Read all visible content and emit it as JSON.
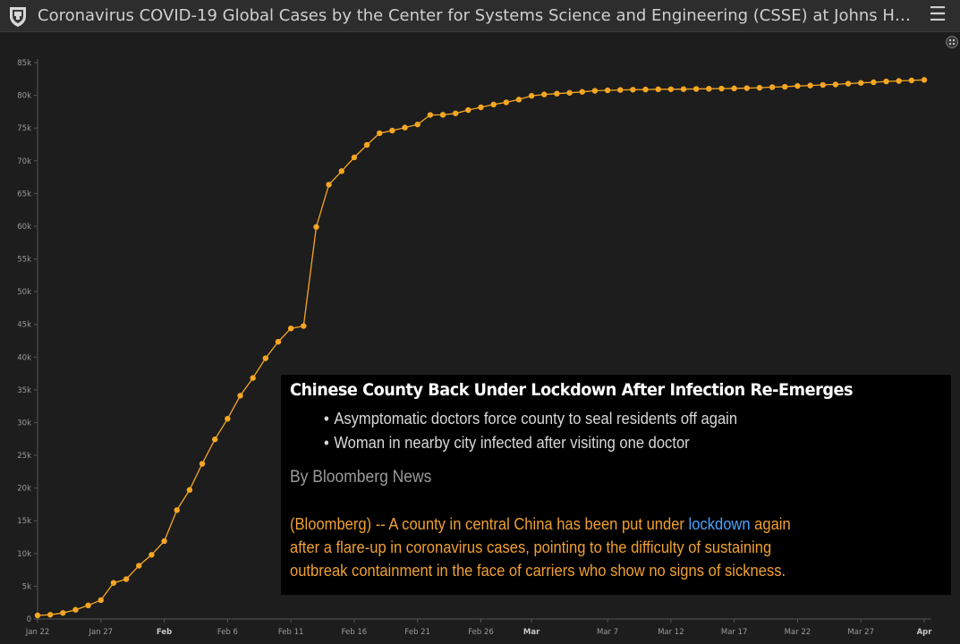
{
  "app": {
    "title": "Coronavirus COVID-19 Global Cases by the Center for Systems Science and Engineering (CSSE) at Johns H…",
    "logo_icon": "university-shield-icon",
    "menu_icon": "hamburger-menu-icon",
    "qr_icon": "qr-code-icon"
  },
  "colors": {
    "background": "#1d1d1d",
    "line": "#f5a623",
    "news_body": "#f0a030",
    "link": "#4aa3ff"
  },
  "chart_data": {
    "type": "line",
    "x_start_label": "Jan 22",
    "x": [
      "Jan 22",
      "Jan 23",
      "Jan 24",
      "Jan 25",
      "Jan 26",
      "Jan 27",
      "Jan 28",
      "Jan 29",
      "Jan 30",
      "Jan 31",
      "Feb 1",
      "Feb 2",
      "Feb 3",
      "Feb 4",
      "Feb 5",
      "Feb 6",
      "Feb 7",
      "Feb 8",
      "Feb 9",
      "Feb 10",
      "Feb 11",
      "Feb 12",
      "Feb 13",
      "Feb 14",
      "Feb 15",
      "Feb 16",
      "Feb 17",
      "Feb 18",
      "Feb 19",
      "Feb 20",
      "Feb 21",
      "Feb 22",
      "Feb 23",
      "Feb 24",
      "Feb 25",
      "Feb 26",
      "Feb 27",
      "Feb 28",
      "Feb 29",
      "Mar 1",
      "Mar 2",
      "Mar 3",
      "Mar 4",
      "Mar 5",
      "Mar 6",
      "Mar 7",
      "Mar 8",
      "Mar 9",
      "Mar 10",
      "Mar 11",
      "Mar 12",
      "Mar 13",
      "Mar 14",
      "Mar 15",
      "Mar 16",
      "Mar 17",
      "Mar 18",
      "Mar 19",
      "Mar 20",
      "Mar 21",
      "Mar 22",
      "Mar 23",
      "Mar 24",
      "Mar 25",
      "Mar 26",
      "Mar 27",
      "Mar 28",
      "Mar 29",
      "Mar 30",
      "Mar 31",
      "Apr 1"
    ],
    "series": [
      {
        "values": [
          548,
          643,
          920,
          1406,
          2075,
          2877,
          5509,
          6087,
          8141,
          9802,
          11891,
          16630,
          19716,
          23707,
          27440,
          30587,
          34110,
          36814,
          39829,
          42354,
          44386,
          44759,
          59895,
          66358,
          68413,
          70513,
          72434,
          74211,
          74619,
          75077,
          75550,
          77001,
          77022,
          77241,
          77754,
          78166,
          78600,
          78928,
          79356,
          79932,
          80136,
          80261,
          80386,
          80537,
          80690,
          80770,
          80823,
          80860,
          80887,
          80921,
          80932,
          80945,
          80977,
          81003,
          81033,
          81058,
          81102,
          81156,
          81250,
          81305,
          81435,
          81498,
          81591,
          81661,
          81782,
          81897,
          81999,
          82122,
          82198,
          82279,
          82361
        ]
      }
    ],
    "x_ticks": [
      "Jan 22",
      "Jan 27",
      "Feb",
      "Feb 6",
      "Feb 11",
      "Feb 16",
      "Feb 21",
      "Feb 26",
      "Mar",
      "Mar 7",
      "Mar 12",
      "Mar 17",
      "Mar 22",
      "Mar 27",
      "Apr"
    ],
    "x_ticks_bold": [
      "Feb",
      "Mar",
      "Apr"
    ],
    "y_ticks": [
      "0",
      "5k",
      "10k",
      "15k",
      "20k",
      "25k",
      "30k",
      "35k",
      "40k",
      "45k",
      "50k",
      "55k",
      "60k",
      "65k",
      "70k",
      "75k",
      "80k",
      "85k"
    ],
    "ylim": [
      0,
      85000
    ],
    "grid": false
  },
  "news": {
    "headline": "Chinese County Back Under Lockdown After Infection Re-Emerges",
    "bullets": [
      "Asymptomatic doctors force county to seal residents off again",
      "Woman in nearby city infected after visiting one doctor"
    ],
    "byline": "By Bloomberg News",
    "body_line1_before": "(Bloomberg) -- A county in central China has been put under ",
    "body_link": "lockdown",
    "body_line1_after": " again",
    "body_line2": "after a flare-up in coronavirus cases, pointing to the difficulty of sustaining",
    "body_line3": "outbreak containment in the face of carriers who show no signs of sickness."
  }
}
